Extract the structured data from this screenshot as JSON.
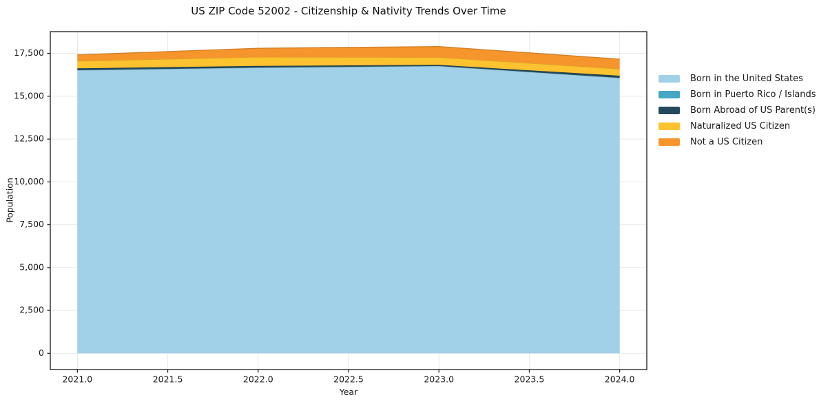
{
  "chart_data": {
    "type": "area",
    "stacked": true,
    "title": "US ZIP Code 52002 - Citizenship & Nativity Trends Over Time",
    "xlabel": "Year",
    "ylabel": "Population",
    "x": [
      2021,
      2022,
      2023,
      2024
    ],
    "series": [
      {
        "name": "Born in the United States",
        "color": "#a0d1e8",
        "values": [
          16520,
          16670,
          16760,
          16070
        ]
      },
      {
        "name": "Born in Puerto Rico / Islands",
        "color": "#45a6c5",
        "values": [
          0,
          0,
          0,
          0
        ]
      },
      {
        "name": "Born Abroad of US Parent(s)",
        "color": "#25495c",
        "values": [
          110,
          100,
          70,
          130
        ]
      },
      {
        "name": "Naturalized US Citizen",
        "color": "#fcc22f",
        "values": [
          425,
          520,
          440,
          400
        ]
      },
      {
        "name": "Not a US Citizen",
        "color": "#f7952d",
        "values": [
          360,
          510,
          630,
          565
        ]
      }
    ],
    "xlim": [
      2020.85,
      2024.15
    ],
    "ylim": [
      -950,
      18770
    ],
    "xticks": {
      "values": [
        2021,
        2021.5,
        2022,
        2022.5,
        2023,
        2023.5,
        2024
      ],
      "labels": [
        "2021.0",
        "2021.5",
        "2022.0",
        "2022.5",
        "2023.0",
        "2023.5",
        "2024.0"
      ]
    },
    "yticks": {
      "values": [
        0,
        2500,
        5000,
        7500,
        10000,
        12500,
        15000,
        17500
      ],
      "labels": [
        "0",
        "2,500",
        "5,000",
        "7,500",
        "10,000",
        "12,500",
        "15,000",
        "17,500"
      ]
    },
    "grid": true,
    "legend_position": "right-outside"
  },
  "colors": {
    "grid": "#e8e8e8",
    "spine": "#1a1a1a",
    "tick_text": "#1a1a1a"
  }
}
